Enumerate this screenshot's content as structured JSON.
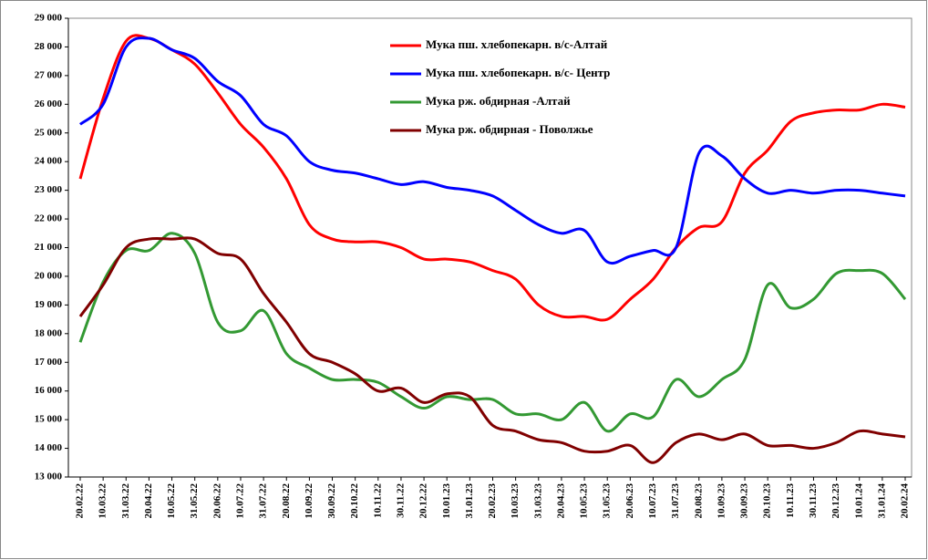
{
  "chart_data": {
    "type": "line",
    "categories": [
      "20.02.22",
      "10.03.22",
      "31.03.22",
      "20.04.22",
      "10.05.22",
      "31.05.22",
      "20.06.22",
      "10.07.22",
      "31.07.22",
      "20.08.22",
      "10.09.22",
      "30.09.22",
      "20.10.22",
      "10.11.22",
      "30.11.22",
      "20.12.22",
      "10.01.23",
      "31.01.23",
      "20.02.23",
      "10.03.23",
      "31.03.23",
      "20.04.23",
      "10.05.23",
      "31.05.23",
      "20.06.23",
      "10.07.23",
      "31.07.23",
      "20.08.23",
      "10.09.23",
      "30.09.23",
      "20.10.23",
      "10.11.23",
      "30.11.23",
      "20.12.23",
      "10.01.24",
      "31.01.24",
      "20.02.24"
    ],
    "series": [
      {
        "name": "Мука пш. хлебопекарн. в/с-Алтай",
        "color": "#ff0000",
        "values": [
          23400,
          26200,
          28200,
          28300,
          27900,
          27400,
          26400,
          25300,
          24500,
          23400,
          21800,
          21300,
          21200,
          21200,
          21000,
          20600,
          20600,
          20500,
          20200,
          19900,
          19000,
          18600,
          18600,
          18500,
          19200,
          19900,
          21000,
          21700,
          21900,
          23600,
          24400,
          25400,
          25700,
          25800,
          25800,
          26000,
          25900
        ]
      },
      {
        "name": "Мука пш. хлебопекарн. в/с- Центр",
        "color": "#0000ff",
        "values": [
          25300,
          26000,
          28000,
          28300,
          27900,
          27600,
          26800,
          26300,
          25300,
          24900,
          24000,
          23700,
          23600,
          23400,
          23200,
          23300,
          23100,
          23000,
          22800,
          22300,
          21800,
          21500,
          21600,
          20500,
          20700,
          20900,
          21000,
          24300,
          24200,
          23400,
          22900,
          23000,
          22900,
          23000,
          23000,
          22900,
          22800
        ]
      },
      {
        "name": "Мука рж. обдирная -Алтай",
        "color": "#339933",
        "values": [
          17700,
          19800,
          20900,
          20900,
          21500,
          20800,
          18400,
          18100,
          18800,
          17300,
          16800,
          16400,
          16400,
          16300,
          15800,
          15400,
          15800,
          15700,
          15700,
          15200,
          15200,
          15000,
          15600,
          14600,
          15200,
          15100,
          16400,
          15800,
          16400,
          17100,
          19700,
          18900,
          19200,
          20100,
          20200,
          20100,
          19200
        ]
      },
      {
        "name": "Мука рж. обдирная - Поволжье",
        "color": "#800000",
        "values": [
          18600,
          19700,
          21000,
          21300,
          21300,
          21300,
          20800,
          20600,
          19400,
          18400,
          17300,
          17000,
          16600,
          16000,
          16100,
          15600,
          15900,
          15800,
          14800,
          14600,
          14300,
          14200,
          13900,
          13900,
          14100,
          13500,
          14200,
          14500,
          14300,
          14500,
          14100,
          14100,
          14000,
          14200,
          14600,
          14500,
          14400
        ]
      }
    ],
    "ylim": [
      13000,
      29000
    ],
    "yticks": [
      {
        "value": 13000,
        "label": "13 000"
      },
      {
        "value": 14000,
        "label": "14 000"
      },
      {
        "value": 15000,
        "label": "15 000"
      },
      {
        "value": 16000,
        "label": "16 000"
      },
      {
        "value": 17000,
        "label": "17 000"
      },
      {
        "value": 18000,
        "label": "18 000"
      },
      {
        "value": 19000,
        "label": "19 000"
      },
      {
        "value": 20000,
        "label": "20 000"
      },
      {
        "value": 21000,
        "label": "21 000"
      },
      {
        "value": 22000,
        "label": "22 000"
      },
      {
        "value": 23000,
        "label": "23 000"
      },
      {
        "value": 24000,
        "label": "24 000"
      },
      {
        "value": 25000,
        "label": "25 000"
      },
      {
        "value": 26000,
        "label": "26 000"
      },
      {
        "value": 27000,
        "label": "27 000"
      },
      {
        "value": 28000,
        "label": "28 000"
      },
      {
        "value": 29000,
        "label": "29 000"
      }
    ]
  }
}
